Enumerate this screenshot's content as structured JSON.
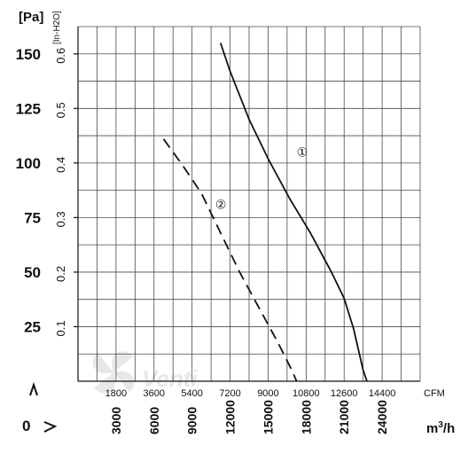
{
  "chart_data": {
    "type": "line",
    "title": "",
    "x": {
      "unit_primary": "CFM",
      "unit_secondary": "m³/h",
      "cfm_ticks": [
        "1800",
        "3600",
        "5400",
        "7200",
        "9000",
        "10800",
        "12600",
        "14400"
      ],
      "m3h_ticks": [
        "3000",
        "6000",
        "9000",
        "12000",
        "15000",
        "18000",
        "21000",
        "24000"
      ],
      "cfm_lim": [
        0,
        16200
      ],
      "zero_label": "0"
    },
    "y": {
      "unit_primary": "[Pa]",
      "unit_secondary": "[In-H2O]",
      "pa_ticks": [
        "25",
        "50",
        "75",
        "100",
        "125",
        "150"
      ],
      "inh2o_ticks": [
        "0.1",
        "0.2",
        "0.3",
        "0.4",
        "0.5",
        "0.6"
      ],
      "pa_lim": [
        0,
        162.5
      ]
    },
    "grid": true,
    "series": [
      {
        "name": "①",
        "style": "solid",
        "points_cfm_pa": [
          [
            6750,
            155
          ],
          [
            7200,
            142
          ],
          [
            8100,
            120
          ],
          [
            9000,
            102
          ],
          [
            10000,
            84
          ],
          [
            11000,
            68
          ],
          [
            12000,
            50
          ],
          [
            12600,
            38
          ],
          [
            13050,
            24
          ],
          [
            13500,
            5
          ],
          [
            13680,
            0
          ]
        ]
      },
      {
        "name": "②",
        "style": "dashed",
        "points_cfm_pa": [
          [
            4050,
            111
          ],
          [
            4950,
            99
          ],
          [
            5850,
            86
          ],
          [
            6750,
            68
          ],
          [
            7650,
            50
          ],
          [
            8550,
            34
          ],
          [
            9450,
            18
          ],
          [
            10125,
            5
          ],
          [
            10350,
            0
          ]
        ]
      }
    ]
  },
  "logo": {
    "text": "Venti",
    "color": "#c8ccd0"
  }
}
